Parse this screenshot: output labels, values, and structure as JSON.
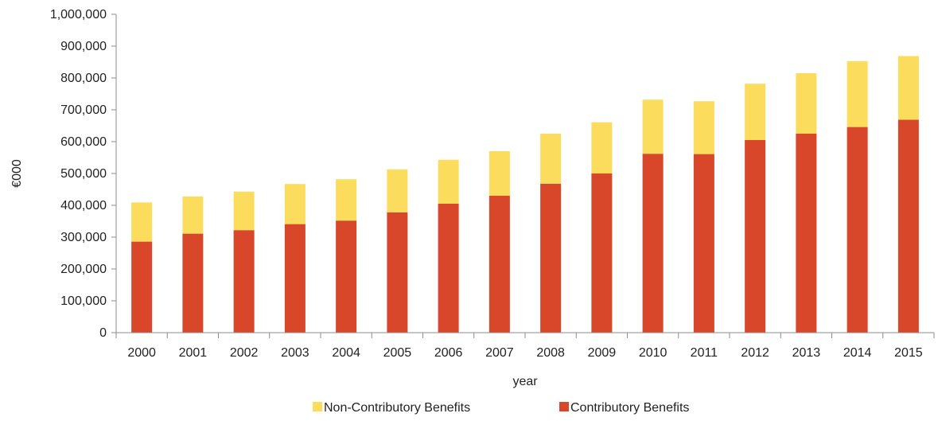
{
  "chart_data": {
    "type": "bar",
    "stacked": true,
    "categories": [
      "2000",
      "2001",
      "2002",
      "2003",
      "2004",
      "2005",
      "2006",
      "2007",
      "2008",
      "2009",
      "2010",
      "2011",
      "2012",
      "2013",
      "2014",
      "2015"
    ],
    "series": [
      {
        "name": "Contributory Benefits",
        "color": "#d9472b",
        "values": [
          286000,
          311000,
          322000,
          341000,
          352000,
          378000,
          405000,
          430000,
          468000,
          500000,
          562000,
          561000,
          605000,
          625000,
          646000,
          669000
        ]
      },
      {
        "name": "Non-Contributory Benefits",
        "color": "#fcdc5c",
        "values": [
          123000,
          117000,
          121000,
          126000,
          130000,
          135000,
          138000,
          140000,
          157000,
          161000,
          170000,
          166000,
          177000,
          190000,
          207000,
          200000
        ]
      }
    ],
    "legend": {
      "position": "bottom",
      "order": [
        "Non-Contributory Benefits",
        "Contributory Benefits"
      ]
    },
    "xlabel": "year",
    "ylabel": "€000",
    "ylim": [
      0,
      1000000
    ],
    "ytick_step": 100000,
    "ytick_labels": [
      "0",
      "100,000",
      "200,000",
      "300,000",
      "400,000",
      "500,000",
      "600,000",
      "700,000",
      "800,000",
      "900,000",
      "1,000,000"
    ],
    "grid": false
  }
}
